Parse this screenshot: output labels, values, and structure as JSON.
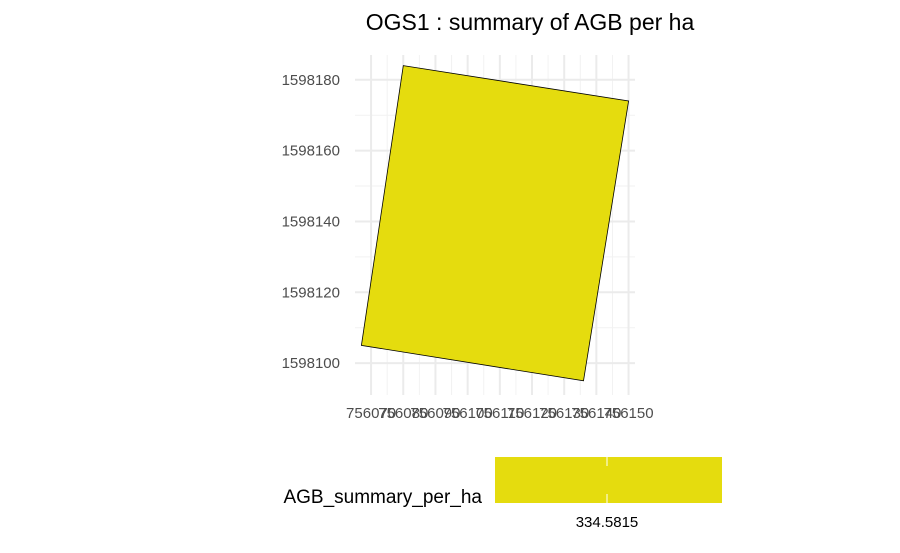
{
  "chart_data": {
    "type": "map",
    "title": "OGS1 : summary of AGB per ha",
    "xlim": [
      756065,
      756152
    ],
    "ylim": [
      1598091,
      1598187
    ],
    "x_ticks": [
      756070,
      756080,
      756090,
      756100,
      756110,
      756120,
      756130,
      756140,
      756150
    ],
    "x_tick_labels": [
      "756070",
      "756080",
      "756090",
      "756100",
      "756110",
      "756120",
      "756130",
      "756140",
      "756150"
    ],
    "y_ticks": [
      1598100,
      1598120,
      1598140,
      1598160,
      1598180
    ],
    "y_tick_labels": [
      "1598100",
      "1598120",
      "1598140",
      "1598160",
      "1598180"
    ],
    "polygon": {
      "value": 334.5815,
      "fill": "#e5dc0e",
      "stroke": "#000000",
      "vertices": [
        [
          756080,
          1598184
        ],
        [
          756150,
          1598174
        ],
        [
          756136,
          1598095
        ],
        [
          756067,
          1598105
        ]
      ]
    },
    "grid": true,
    "legend": {
      "title": "AGB_summary_per_ha",
      "placement": "bottom",
      "tick_value": 334.5815,
      "tick_label": "334.5815",
      "color": "#e5dc0e"
    }
  }
}
